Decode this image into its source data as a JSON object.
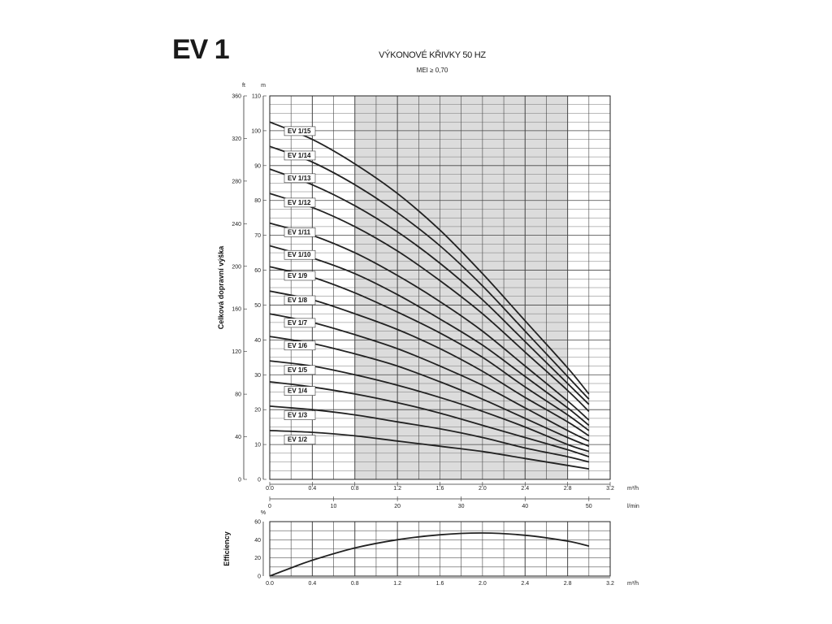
{
  "series_title": "EV 1",
  "chart_data": [
    {
      "type": "line",
      "title": "VÝKONOVÉ KŘIVKY 50 HZ",
      "subtitle": "MEI ≥ 0,70",
      "ylabel": "Celková dopravní výška",
      "y_unit": "m",
      "y2_unit": "ft",
      "x_unit": "m³/h",
      "x2_unit": "l/min",
      "xlim": [
        0,
        3.2
      ],
      "ylim": [
        0,
        110
      ],
      "y2lim": [
        0,
        360
      ],
      "shaded_range": [
        0.8,
        2.8
      ],
      "x_ticks": [
        "0.0",
        "0.4",
        "0.8",
        "1.2",
        "1.6",
        "2.0",
        "2.4",
        "2.8",
        "3.2"
      ],
      "y_ticks": [
        "0",
        "10",
        "20",
        "30",
        "40",
        "50",
        "60",
        "70",
        "80",
        "90",
        "100",
        "110"
      ],
      "y2_ticks": [
        "0",
        "40",
        "80",
        "120",
        "160",
        "200",
        "240",
        "280",
        "320",
        "360"
      ],
      "x2_ticks": [
        "0",
        "10",
        "20",
        "30",
        "40",
        "50"
      ],
      "x2_per_x": 16.6667,
      "series": [
        {
          "name": "EV 1/15",
          "values": [
            [
              0,
              102.5
            ],
            [
              0.4,
              97.5
            ],
            [
              0.8,
              90.5
            ],
            [
              1.2,
              82
            ],
            [
              1.6,
              71.5
            ],
            [
              2.0,
              59
            ],
            [
              2.4,
              45.5
            ],
            [
              2.8,
              32
            ],
            [
              3.0,
              24.5
            ]
          ]
        },
        {
          "name": "EV 1/14",
          "values": [
            [
              0,
              95.5
            ],
            [
              0.4,
              91
            ],
            [
              0.8,
              84.5
            ],
            [
              1.2,
              76.5
            ],
            [
              1.6,
              67
            ],
            [
              2.0,
              55.5
            ],
            [
              2.4,
              42.5
            ],
            [
              2.8,
              29.5
            ],
            [
              3.0,
              23
            ]
          ]
        },
        {
          "name": "EV 1/13",
          "values": [
            [
              0,
              89
            ],
            [
              0.4,
              84.5
            ],
            [
              0.8,
              78.5
            ],
            [
              1.2,
              71
            ],
            [
              1.6,
              62
            ],
            [
              2.0,
              51.5
            ],
            [
              2.4,
              39.5
            ],
            [
              2.8,
              27.5
            ],
            [
              3.0,
              21.5
            ]
          ]
        },
        {
          "name": "EV 1/12",
          "values": [
            [
              0,
              82
            ],
            [
              0.4,
              78
            ],
            [
              0.8,
              72.5
            ],
            [
              1.2,
              65.5
            ],
            [
              1.6,
              57
            ],
            [
              2.0,
              47.5
            ],
            [
              2.4,
              36.5
            ],
            [
              2.8,
              25.5
            ],
            [
              3.0,
              19.5
            ]
          ]
        },
        {
          "name": "EV 1/11",
          "values": [
            [
              0,
              73.5
            ],
            [
              0.4,
              70
            ],
            [
              0.8,
              65
            ],
            [
              1.2,
              58.5
            ],
            [
              1.6,
              51
            ],
            [
              2.0,
              42.5
            ],
            [
              2.4,
              32.5
            ],
            [
              2.8,
              22.5
            ],
            [
              3.0,
              17
            ]
          ]
        },
        {
          "name": "EV 1/10",
          "values": [
            [
              0,
              67
            ],
            [
              0.4,
              63.5
            ],
            [
              0.8,
              59
            ],
            [
              1.2,
              53
            ],
            [
              1.6,
              46
            ],
            [
              2.0,
              38.5
            ],
            [
              2.4,
              29.5
            ],
            [
              2.8,
              20.5
            ],
            [
              3.0,
              15.5
            ]
          ]
        },
        {
          "name": "EV 1/9",
          "values": [
            [
              0,
              61
            ],
            [
              0.4,
              58
            ],
            [
              0.8,
              53.5
            ],
            [
              1.2,
              48
            ],
            [
              1.6,
              42
            ],
            [
              2.0,
              35
            ],
            [
              2.4,
              26.5
            ],
            [
              2.8,
              18.5
            ],
            [
              3.0,
              14
            ]
          ]
        },
        {
          "name": "EV 1/8",
          "values": [
            [
              0,
              54
            ],
            [
              0.4,
              51.5
            ],
            [
              0.8,
              47.5
            ],
            [
              1.2,
              43
            ],
            [
              1.6,
              37.5
            ],
            [
              2.0,
              31
            ],
            [
              2.4,
              23.5
            ],
            [
              2.8,
              16.5
            ],
            [
              3.0,
              12.5
            ]
          ]
        },
        {
          "name": "EV 1/7",
          "values": [
            [
              0,
              47.5
            ],
            [
              0.4,
              45
            ],
            [
              0.8,
              41.5
            ],
            [
              1.2,
              37.5
            ],
            [
              1.6,
              32.5
            ],
            [
              2.0,
              27
            ],
            [
              2.4,
              20.5
            ],
            [
              2.8,
              14
            ],
            [
              3.0,
              11
            ]
          ]
        },
        {
          "name": "EV 1/6",
          "values": [
            [
              0,
              41
            ],
            [
              0.4,
              39
            ],
            [
              0.8,
              36
            ],
            [
              1.2,
              32.5
            ],
            [
              1.6,
              28
            ],
            [
              2.0,
              23
            ],
            [
              2.4,
              17.5
            ],
            [
              2.8,
              12
            ],
            [
              3.0,
              9.5
            ]
          ]
        },
        {
          "name": "EV 1/5",
          "values": [
            [
              0,
              34
            ],
            [
              0.4,
              32.5
            ],
            [
              0.8,
              30
            ],
            [
              1.2,
              27
            ],
            [
              1.6,
              23.5
            ],
            [
              2.0,
              19.5
            ],
            [
              2.4,
              15
            ],
            [
              2.8,
              10
            ],
            [
              3.0,
              8
            ]
          ]
        },
        {
          "name": "EV 1/4",
          "values": [
            [
              0,
              28
            ],
            [
              0.4,
              26.5
            ],
            [
              0.8,
              24.5
            ],
            [
              1.2,
              22
            ],
            [
              1.6,
              19
            ],
            [
              2.0,
              15.5
            ],
            [
              2.4,
              12
            ],
            [
              2.8,
              8.5
            ],
            [
              3.0,
              6.5
            ]
          ]
        },
        {
          "name": "EV 1/3",
          "values": [
            [
              0,
              21
            ],
            [
              0.4,
              20
            ],
            [
              0.8,
              18.5
            ],
            [
              1.2,
              16.5
            ],
            [
              1.6,
              14.5
            ],
            [
              2.0,
              12
            ],
            [
              2.4,
              9
            ],
            [
              2.8,
              6.5
            ],
            [
              3.0,
              5
            ]
          ]
        },
        {
          "name": "EV 1/2",
          "values": [
            [
              0,
              14
            ],
            [
              0.4,
              13.5
            ],
            [
              0.8,
              12.5
            ],
            [
              1.2,
              11
            ],
            [
              1.6,
              9.5
            ],
            [
              2.0,
              8
            ],
            [
              2.4,
              6
            ],
            [
              2.8,
              4
            ],
            [
              3.0,
              3
            ]
          ]
        }
      ]
    },
    {
      "type": "line",
      "ylabel": "Efficiency",
      "y_unit": "%",
      "x_unit": "m³/h",
      "xlim": [
        0,
        3.2
      ],
      "ylim": [
        0,
        60
      ],
      "x_ticks": [
        "0.0",
        "0.4",
        "0.8",
        "1.2",
        "1.6",
        "2.0",
        "2.4",
        "2.8",
        "3.2"
      ],
      "y_ticks": [
        "0",
        "20",
        "40",
        "60"
      ],
      "series": [
        {
          "values": [
            [
              0,
              0
            ],
            [
              0.2,
              9
            ],
            [
              0.4,
              17.5
            ],
            [
              0.8,
              31
            ],
            [
              1.2,
              40
            ],
            [
              1.6,
              45.5
            ],
            [
              2.0,
              47.5
            ],
            [
              2.4,
              45
            ],
            [
              2.8,
              38.5
            ],
            [
              3.0,
              33
            ]
          ]
        }
      ]
    }
  ]
}
